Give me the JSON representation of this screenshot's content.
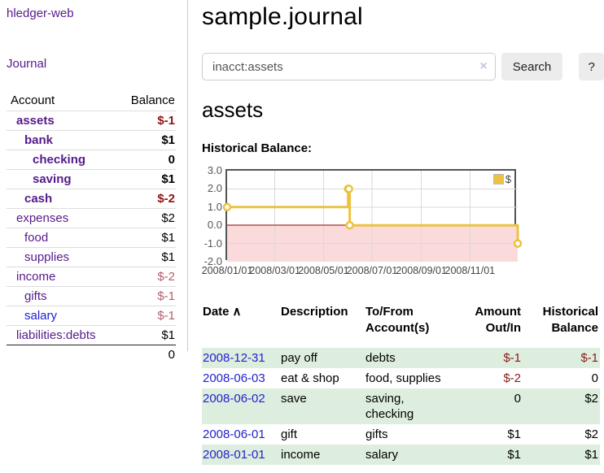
{
  "colors": {
    "link_purple": "#551a8b",
    "link_blue": "#2222cc",
    "negative_strong": "#8b1515",
    "negative_soft": "#b2606a",
    "table_negative": "#8b1a1a",
    "row_green": "#deeede",
    "series_yellow": "#edc240"
  },
  "sidebar": {
    "brand": "hledger-web",
    "nav": [
      {
        "label": "Journal"
      }
    ],
    "accounts_table": {
      "headers": {
        "account": "Account",
        "balance": "Balance"
      },
      "rows": [
        {
          "name": "assets",
          "depth": 1,
          "bold": true,
          "balance": "$-1",
          "balance_style": "neg-strong",
          "link_style": "visited"
        },
        {
          "name": "bank",
          "depth": 2,
          "bold": true,
          "balance": "$1",
          "balance_style": "pos-strong",
          "link_style": "visited"
        },
        {
          "name": "checking",
          "depth": 3,
          "bold": true,
          "balance": "0",
          "balance_style": "pos-strong",
          "link_style": "visited"
        },
        {
          "name": "saving",
          "depth": 3,
          "bold": true,
          "balance": "$1",
          "balance_style": "pos-strong",
          "link_style": "visited"
        },
        {
          "name": "cash",
          "depth": 2,
          "bold": true,
          "balance": "$-2",
          "balance_style": "neg-strong",
          "link_style": "visited"
        },
        {
          "name": "expenses",
          "depth": 1,
          "bold": false,
          "balance": "$2",
          "balance_style": "pos",
          "link_style": "visited"
        },
        {
          "name": "food",
          "depth": 2,
          "bold": false,
          "balance": "$1",
          "balance_style": "pos",
          "link_style": "visited"
        },
        {
          "name": "supplies",
          "depth": 2,
          "bold": false,
          "balance": "$1",
          "balance_style": "pos",
          "link_style": "visited"
        },
        {
          "name": "income",
          "depth": 1,
          "bold": false,
          "balance": "$-2",
          "balance_style": "neg-soft",
          "link_style": "visited"
        },
        {
          "name": "gifts",
          "depth": 2,
          "bold": false,
          "balance": "$-1",
          "balance_style": "neg-soft",
          "link_style": "visited"
        },
        {
          "name": "salary",
          "depth": 2,
          "bold": false,
          "balance": "$-1",
          "balance_style": "neg-soft",
          "link_style": "unvisited"
        },
        {
          "name": "liabilities:debts",
          "depth": 1,
          "bold": false,
          "balance": "$1",
          "balance_style": "pos",
          "link_style": "visited"
        }
      ],
      "total": "0"
    }
  },
  "header": {
    "title": "sample.journal"
  },
  "search": {
    "value": "inacct:assets",
    "clear_icon": "×",
    "search_button": "Search",
    "help_button": "?"
  },
  "account_page": {
    "heading": "assets",
    "chart_label": "Historical Balance:"
  },
  "chart_data": {
    "type": "line",
    "title": "Historical Balance:",
    "steps": true,
    "series": [
      {
        "name": "$",
        "color": "#edc240",
        "points": [
          [
            "2008-01-01",
            1
          ],
          [
            "2008-06-01",
            2
          ],
          [
            "2008-06-02",
            2
          ],
          [
            "2008-06-03",
            0
          ],
          [
            "2008-12-31",
            -1
          ]
        ]
      }
    ],
    "xlim": [
      "2008-01-01",
      "2008-12-31"
    ],
    "ylim": [
      -2,
      3
    ],
    "y_ticks": [
      "3.0",
      "2.0",
      "1.0",
      "0.0",
      "-1.0",
      "-2.0"
    ],
    "x_ticks": [
      "2008/01/01",
      "2008/03/01",
      "2008/05/01",
      "2008/07/01",
      "2008/09/01",
      "2008/11/01"
    ],
    "grid": true,
    "grid_color": "#d9d9d9",
    "zero_line_color": "#8b0000",
    "negative_region_color": "#fadada",
    "legend": {
      "label": "$",
      "position": "top-right"
    }
  },
  "transactions": {
    "headers": {
      "date": "Date",
      "sort_icon": "∧",
      "description": "Description",
      "accounts": "To/From Account(s)",
      "amount": "Amount Out/In",
      "balance": "Historical Balance"
    },
    "rows": [
      {
        "date": "2008-12-31",
        "description": "pay off",
        "accounts": "debts",
        "amount": "$-1",
        "amount_negative": true,
        "balance": "$-1",
        "balance_negative": true
      },
      {
        "date": "2008-06-03",
        "description": "eat & shop",
        "accounts": "food, supplies",
        "amount": "$-2",
        "amount_negative": true,
        "balance": "0",
        "balance_negative": false
      },
      {
        "date": "2008-06-02",
        "description": "save",
        "accounts": "saving, checking",
        "amount": "0",
        "amount_negative": false,
        "balance": "$2",
        "balance_negative": false
      },
      {
        "date": "2008-06-01",
        "description": "gift",
        "accounts": "gifts",
        "amount": "$1",
        "amount_negative": false,
        "balance": "$2",
        "balance_negative": false
      },
      {
        "date": "2008-01-01",
        "description": "income",
        "accounts": "salary",
        "amount": "$1",
        "amount_negative": false,
        "balance": "$1",
        "balance_negative": false
      }
    ]
  }
}
